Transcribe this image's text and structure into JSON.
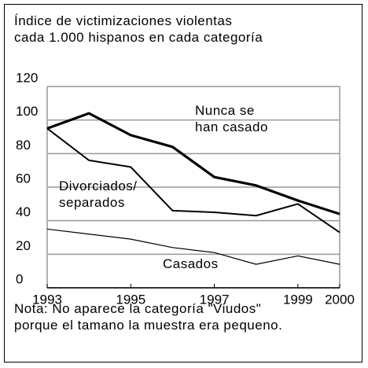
{
  "chart_data": {
    "type": "line",
    "title": "Índice de victimizaciones violentas\ncada 1.000 hispanos en cada categoría",
    "note": "Nota:  No aparece la categoría \"Viudos\"\nporque el tamano la muestra era pequeno.",
    "x": [
      1993,
      1994,
      1995,
      1996,
      1997,
      1998,
      1999,
      2000
    ],
    "xlim": [
      1993,
      2000
    ],
    "xticks": [
      1993,
      1995,
      1997,
      1999,
      2000
    ],
    "ylim": [
      0,
      120
    ],
    "yticks": [
      0,
      20,
      40,
      60,
      80,
      100,
      120
    ],
    "grid": true,
    "series": [
      {
        "name": "Nunca se\nhan casado",
        "color": "#000000",
        "values": [
          95,
          104,
          91,
          84,
          66,
          61,
          52,
          44
        ]
      },
      {
        "name": "Divorciados/\nseparados",
        "color": "#000000",
        "values": [
          95,
          76,
          72,
          46,
          45,
          43,
          50,
          33
        ]
      },
      {
        "name": "Casados",
        "color": "#000000",
        "values": [
          35,
          32,
          29,
          24,
          21,
          14,
          19,
          14
        ]
      }
    ]
  }
}
